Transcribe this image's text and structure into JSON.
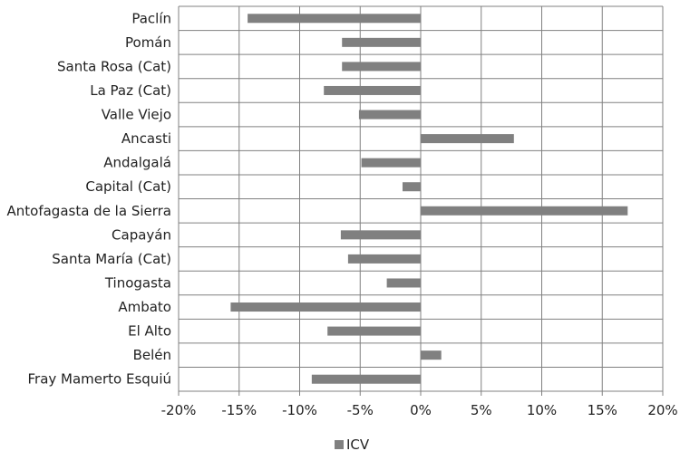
{
  "chart_data": {
    "type": "bar",
    "orientation": "horizontal",
    "categories": [
      "Paclín",
      "Pomán",
      "Santa Rosa (Cat)",
      "La Paz (Cat)",
      "Valle Viejo",
      "Ancasti",
      "Andalgalá",
      "Capital (Cat)",
      "Antofagasta de la Sierra",
      "Capayán",
      "Santa María (Cat)",
      "Tinogasta",
      "Ambato",
      "El Alto",
      "Belén",
      "Fray Mamerto Esquiú"
    ],
    "series": [
      {
        "name": "ICV",
        "color": "#808080",
        "values": [
          -14.3,
          -6.5,
          -6.5,
          -8.0,
          -5.1,
          7.7,
          -4.9,
          -1.5,
          17.1,
          -6.6,
          -6.0,
          -2.8,
          -15.7,
          -7.7,
          1.7,
          -9.0
        ]
      }
    ],
    "xlim": [
      -20,
      20
    ],
    "xticks": [
      -20,
      -15,
      -10,
      -5,
      0,
      5,
      10,
      15,
      20
    ],
    "xtick_labels": [
      "-20%",
      "-15%",
      "-10%",
      "-5%",
      "0%",
      "5%",
      "10%",
      "15%",
      "20%"
    ],
    "title": "",
    "xlabel": "",
    "ylabel": "",
    "grid": true,
    "legend": {
      "position": "bottom",
      "entries": [
        "ICV"
      ]
    }
  }
}
